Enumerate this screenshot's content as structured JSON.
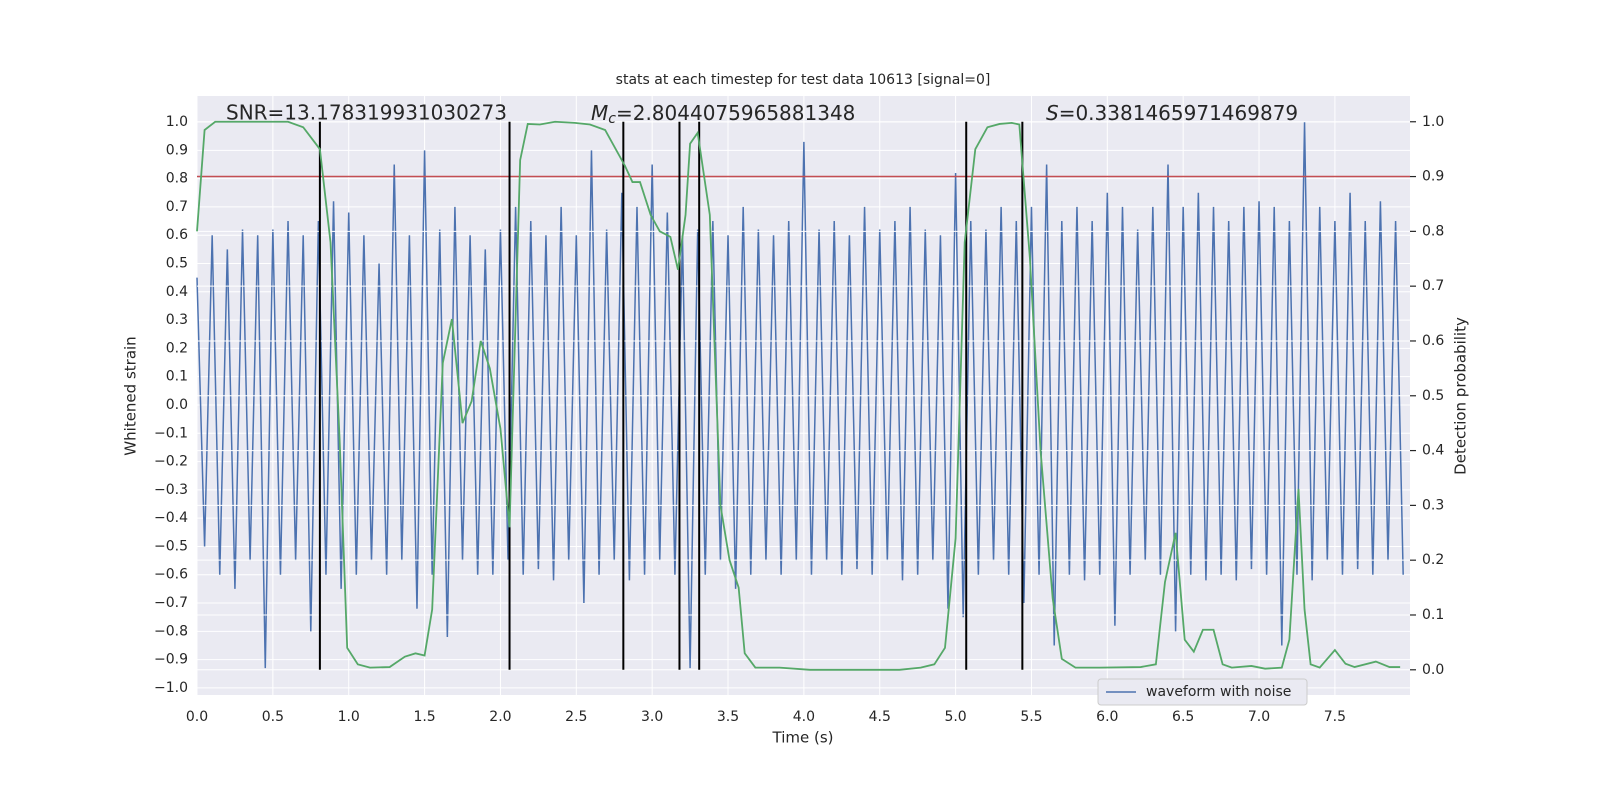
{
  "chart_data": {
    "type": "line",
    "title": "stats at each timestep for test data 10613 [signal=0]",
    "x_label": "Time (s)",
    "y_label": "Whitened strain",
    "y2_label": "Detection probability",
    "grid": true,
    "legend": "lower right",
    "xlim": [
      0,
      7.995
    ],
    "ylim": [
      -1.025,
      1.092
    ],
    "y2lim": [
      -0.046,
      1.047
    ],
    "xticks": [
      {
        "value": 0,
        "label": "0.0"
      },
      0.5,
      {
        "value": 1,
        "label": "1.0"
      },
      1.5,
      {
        "value": 2,
        "label": "2.0"
      },
      2.5,
      {
        "value": 3,
        "label": "3.0"
      },
      3.5,
      {
        "value": 4,
        "label": "4.0"
      },
      4.5,
      {
        "value": 5,
        "label": "5.0"
      },
      5.5,
      {
        "value": 6,
        "label": "6.0"
      },
      6.5,
      {
        "value": 7,
        "label": "7.0"
      },
      7.5
    ],
    "yticks": [
      {
        "value": 1,
        "label": "1.0"
      },
      0.9,
      0.8,
      0.7,
      0.6,
      0.5,
      0.4,
      0.3,
      0.2,
      0.1,
      {
        "value": 0,
        "label": "0.0"
      },
      {
        "value": -0.1,
        "label": "−0.1"
      },
      {
        "value": -0.2,
        "label": "−0.2"
      },
      {
        "value": -0.3,
        "label": "−0.3"
      },
      {
        "value": -0.4,
        "label": "−0.4"
      },
      {
        "value": -0.5,
        "label": "−0.5"
      },
      {
        "value": -0.6,
        "label": "−0.6"
      },
      {
        "value": -0.7,
        "label": "−0.7"
      },
      {
        "value": -0.8,
        "label": "−0.8"
      },
      {
        "value": -0.9,
        "label": "−0.9"
      },
      {
        "value": -1,
        "label": "−1.0"
      }
    ],
    "y2ticks": [
      {
        "value": 0,
        "label": "0.0"
      },
      0.1,
      0.2,
      0.3,
      0.4,
      0.5,
      0.6,
      0.7,
      0.8,
      0.9,
      {
        "value": 1,
        "label": "1.0"
      }
    ],
    "annotations": [
      {
        "text": "SNR=13.178319931030273"
      },
      {
        "symbol": "M",
        "subscript": "c",
        "text": "=2.8044075965881348"
      },
      {
        "symbol": "S",
        "text": "=0.3381465971469879"
      }
    ],
    "series": [
      {
        "name": "waveform with noise",
        "color": "#4c72b0",
        "x": [
          0,
          0.05,
          0.1,
          0.15,
          0.2,
          0.25,
          0.3,
          0.35,
          0.4,
          0.45,
          0.5,
          0.55,
          0.6,
          0.65,
          0.7,
          0.75,
          0.8,
          0.85,
          0.9,
          0.95,
          1,
          1.05,
          1.1,
          1.15,
          1.2,
          1.25,
          1.3,
          1.35,
          1.4,
          1.45,
          1.5,
          1.55,
          1.6,
          1.65,
          1.7,
          1.75,
          1.8,
          1.85,
          1.9,
          1.95,
          2,
          2.05,
          2.1,
          2.15,
          2.2,
          2.25,
          2.3,
          2.35,
          2.4,
          2.45,
          2.5,
          2.55,
          2.6,
          2.65,
          2.7,
          2.75,
          2.8,
          2.85,
          2.9,
          2.95,
          3,
          3.05,
          3.1,
          3.15,
          3.2,
          3.25,
          3.3,
          3.35,
          3.4,
          3.45,
          3.5,
          3.55,
          3.6,
          3.65,
          3.7,
          3.75,
          3.8,
          3.85,
          3.9,
          3.95,
          4,
          4.05,
          4.1,
          4.15,
          4.2,
          4.25,
          4.3,
          4.35,
          4.4,
          4.45,
          4.5,
          4.55,
          4.6,
          4.65,
          4.7,
          4.75,
          4.8,
          4.85,
          4.9,
          4.95,
          5,
          5.05,
          5.1,
          5.15,
          5.2,
          5.25,
          5.3,
          5.35,
          5.4,
          5.45,
          5.5,
          5.55,
          5.6,
          5.65,
          5.7,
          5.75,
          5.8,
          5.85,
          5.9,
          5.95,
          6,
          6.05,
          6.1,
          6.15,
          6.2,
          6.25,
          6.3,
          6.35,
          6.4,
          6.45,
          6.5,
          6.55,
          6.6,
          6.65,
          6.7,
          6.75,
          6.8,
          6.85,
          6.9,
          6.95,
          7,
          7.05,
          7.1,
          7.15,
          7.2,
          7.25,
          7.3,
          7.35,
          7.4,
          7.45,
          7.5,
          7.55,
          7.6,
          7.65,
          7.7,
          7.75,
          7.8,
          7.85,
          7.9,
          7.95
        ],
        "values": [
          0.45,
          -0.5,
          0.6,
          -0.6,
          0.55,
          -0.65,
          0.62,
          -0.55,
          0.6,
          -0.93,
          0.62,
          -0.6,
          0.65,
          -0.55,
          0.6,
          -0.8,
          0.65,
          -0.6,
          0.72,
          -0.65,
          0.68,
          -0.6,
          0.6,
          -0.55,
          0.5,
          -0.6,
          0.85,
          -0.55,
          0.6,
          -0.72,
          0.9,
          -0.6,
          0.62,
          -0.82,
          0.7,
          -0.55,
          0.6,
          -0.6,
          0.55,
          -0.6,
          0.62,
          -0.55,
          0.7,
          -0.6,
          0.65,
          -0.58,
          0.6,
          -0.62,
          0.7,
          -0.55,
          0.6,
          -0.7,
          0.9,
          -0.6,
          0.62,
          -0.55,
          0.75,
          -0.62,
          0.7,
          -0.6,
          0.85,
          -0.55,
          0.68,
          -0.6,
          0.6,
          -0.93,
          0.62,
          -0.6,
          0.65,
          -0.55,
          0.6,
          -0.65,
          0.7,
          -0.6,
          0.62,
          -0.55,
          0.6,
          -0.6,
          0.65,
          -0.55,
          0.93,
          -0.6,
          0.62,
          -0.55,
          0.65,
          -0.6,
          0.6,
          -0.58,
          0.7,
          -0.6,
          0.62,
          -0.55,
          0.65,
          -0.62,
          0.7,
          -0.6,
          0.62,
          -0.55,
          0.6,
          -0.72,
          0.82,
          -0.75,
          0.65,
          -0.6,
          0.62,
          -0.55,
          0.7,
          -0.6,
          0.65,
          -0.7,
          0.7,
          -0.6,
          0.85,
          -0.85,
          0.65,
          -0.6,
          0.7,
          -0.62,
          0.65,
          -0.6,
          0.75,
          -0.78,
          0.7,
          -0.6,
          0.62,
          -0.55,
          0.7,
          -0.6,
          0.85,
          -0.8,
          0.7,
          -0.6,
          0.75,
          -0.62,
          0.7,
          -0.6,
          0.65,
          -0.62,
          0.7,
          -0.58,
          0.72,
          -0.6,
          0.7,
          -0.85,
          0.65,
          -0.6,
          1.0,
          -0.62,
          0.7,
          -0.55,
          0.65,
          -0.6,
          0.75,
          -0.58,
          0.65,
          -0.6,
          0.72,
          -0.55,
          0.65,
          -0.6
        ]
      },
      {
        "color": "#55a868",
        "axis": "y2",
        "x": [
          0,
          0.05,
          0.12,
          0.6,
          0.7,
          0.81,
          0.88,
          0.94,
          0.99,
          1.06,
          1.14,
          1.27,
          1.37,
          1.44,
          1.5,
          1.55,
          1.62,
          1.68,
          1.75,
          1.81,
          1.87,
          1.93,
          2.0,
          2.06,
          2.13,
          2.18,
          2.26,
          2.36,
          2.49,
          2.59,
          2.69,
          2.76,
          2.82,
          2.87,
          2.92,
          2.99,
          3.05,
          3.12,
          3.17,
          3.22,
          3.25,
          3.3,
          3.38,
          3.45,
          3.51,
          3.57,
          3.61,
          3.68,
          3.84,
          4.04,
          4.63,
          4.77,
          4.86,
          4.93,
          5.0,
          5.06,
          5.13,
          5.21,
          5.29,
          5.37,
          5.42,
          5.49,
          5.56,
          5.64,
          5.7,
          5.79,
          5.95,
          6.22,
          6.32,
          6.38,
          6.45,
          6.51,
          6.57,
          6.63,
          6.7,
          6.76,
          6.82,
          6.95,
          7.04,
          7.15,
          7.2,
          7.26,
          7.3,
          7.34,
          7.4,
          7.5,
          7.57,
          7.63,
          7.77,
          7.86,
          7.93
        ],
        "values": [
          0.8,
          0.985,
          1.0,
          1.0,
          0.99,
          0.95,
          0.78,
          0.42,
          0.04,
          0.01,
          0.004,
          0.005,
          0.024,
          0.03,
          0.026,
          0.11,
          0.56,
          0.64,
          0.45,
          0.49,
          0.6,
          0.55,
          0.44,
          0.26,
          0.93,
          0.996,
          0.995,
          1.0,
          0.998,
          0.995,
          0.985,
          0.95,
          0.92,
          0.89,
          0.89,
          0.83,
          0.8,
          0.79,
          0.73,
          0.83,
          0.96,
          0.98,
          0.83,
          0.3,
          0.2,
          0.15,
          0.03,
          0.004,
          0.004,
          0.0,
          0.0,
          0.004,
          0.01,
          0.04,
          0.24,
          0.78,
          0.95,
          0.99,
          0.996,
          0.998,
          0.995,
          0.75,
          0.4,
          0.13,
          0.02,
          0.004,
          0.004,
          0.005,
          0.01,
          0.16,
          0.25,
          0.055,
          0.033,
          0.073,
          0.073,
          0.01,
          0.004,
          0.007,
          0.002,
          0.004,
          0.055,
          0.33,
          0.11,
          0.01,
          0.004,
          0.036,
          0.011,
          0.005,
          0.015,
          0.005,
          0.005
        ]
      }
    ],
    "vlines": {
      "color": "#000000",
      "axis": "y2",
      "ymin": 0,
      "ymax": 1,
      "x": [
        0.81,
        2.06,
        2.81,
        3.18,
        3.31,
        5.07,
        5.44
      ]
    },
    "hline": {
      "color": "#c44e52",
      "axis": "y2",
      "value": 0.9
    }
  }
}
